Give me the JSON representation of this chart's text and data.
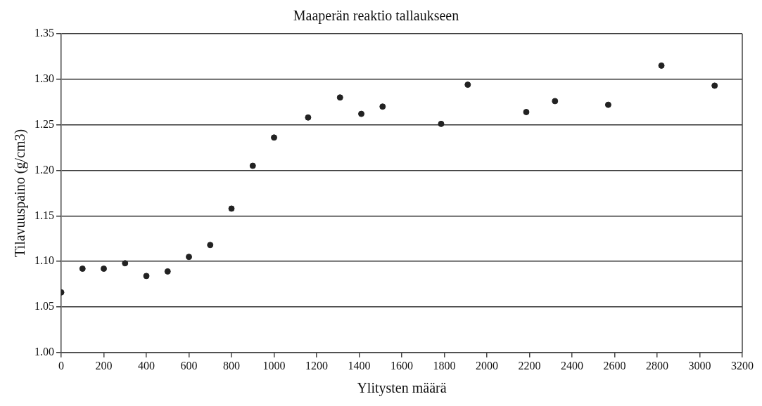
{
  "chart_data": {
    "type": "scatter",
    "title": "Maaperän reaktio tallaukseen",
    "xlabel": "Ylitysten määrä",
    "ylabel": "Tilavuuspaino (g/cm3)",
    "x": [
      0,
      100,
      200,
      300,
      400,
      500,
      600,
      700,
      800,
      900,
      1000,
      1160,
      1310,
      1410,
      1510,
      1785,
      1910,
      2185,
      2320,
      2570,
      2820,
      3070
    ],
    "series": [
      {
        "color": "#222222",
        "values": [
          1.066,
          1.092,
          1.092,
          1.098,
          1.084,
          1.089,
          1.105,
          1.118,
          1.158,
          1.205,
          1.236,
          1.258,
          1.28,
          1.262,
          1.27,
          1.251,
          1.294,
          1.264,
          1.276,
          1.272,
          1.315,
          1.293
        ]
      }
    ],
    "xlim": [
      0,
      3200
    ],
    "xticks": [
      0,
      200,
      400,
      600,
      800,
      1000,
      1200,
      1400,
      1600,
      1800,
      2000,
      2200,
      2400,
      2600,
      2800,
      3000,
      3200
    ],
    "ylim": [
      1.0,
      1.35
    ],
    "yticks": [
      {
        "value": 1.0,
        "label": "1.00"
      },
      {
        "value": 1.05,
        "label": "1.05"
      },
      {
        "value": 1.1,
        "label": "1.10"
      },
      {
        "value": 1.15,
        "label": "1.15"
      },
      {
        "value": 1.2,
        "label": "1.20"
      },
      {
        "value": 1.25,
        "label": "1.25"
      },
      {
        "value": 1.3,
        "label": "1.30"
      },
      {
        "value": 1.35,
        "label": "1.35"
      }
    ],
    "grid": "y",
    "legend": false,
    "marker": "circle"
  }
}
